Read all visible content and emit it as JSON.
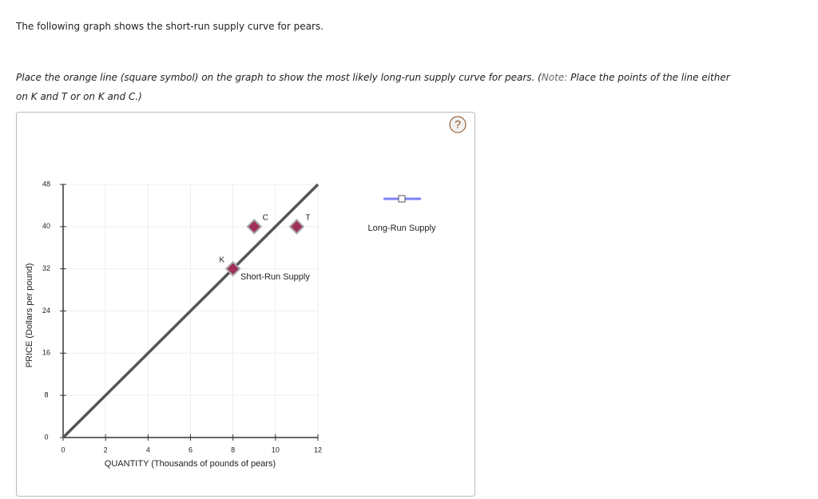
{
  "question": {
    "intro": "The following graph shows the short-run supply curve for pears.",
    "task": "Place the orange line (square symbol) on the graph to show the most likely long-run supply curve for pears. (",
    "note_label": "Note:",
    "note_text": " Place the points of the line either on K and T or on K and C.)"
  },
  "help_icon": "?",
  "chart_data": {
    "type": "line",
    "xlabel": "QUANTITY (Thousands of pounds of pears)",
    "ylabel": "PRICE (Dollars per pound)",
    "xlim": [
      0,
      12
    ],
    "ylim": [
      0,
      48
    ],
    "xticks": [
      0,
      2,
      4,
      6,
      8,
      10,
      12
    ],
    "yticks": [
      0,
      8,
      16,
      24,
      32,
      40,
      48
    ],
    "series": [
      {
        "name": "Short-Run Supply",
        "color": "#555555",
        "x": [
          0,
          12
        ],
        "values": [
          0,
          48
        ]
      }
    ],
    "points": [
      {
        "label": "K",
        "x": 8,
        "y": 32
      },
      {
        "label": "C",
        "x": 9,
        "y": 40
      },
      {
        "label": "T",
        "x": 11,
        "y": 40
      }
    ],
    "point_color": "#a0305a",
    "tool": {
      "name": "Long-Run Supply",
      "color": "#8080ff"
    }
  }
}
